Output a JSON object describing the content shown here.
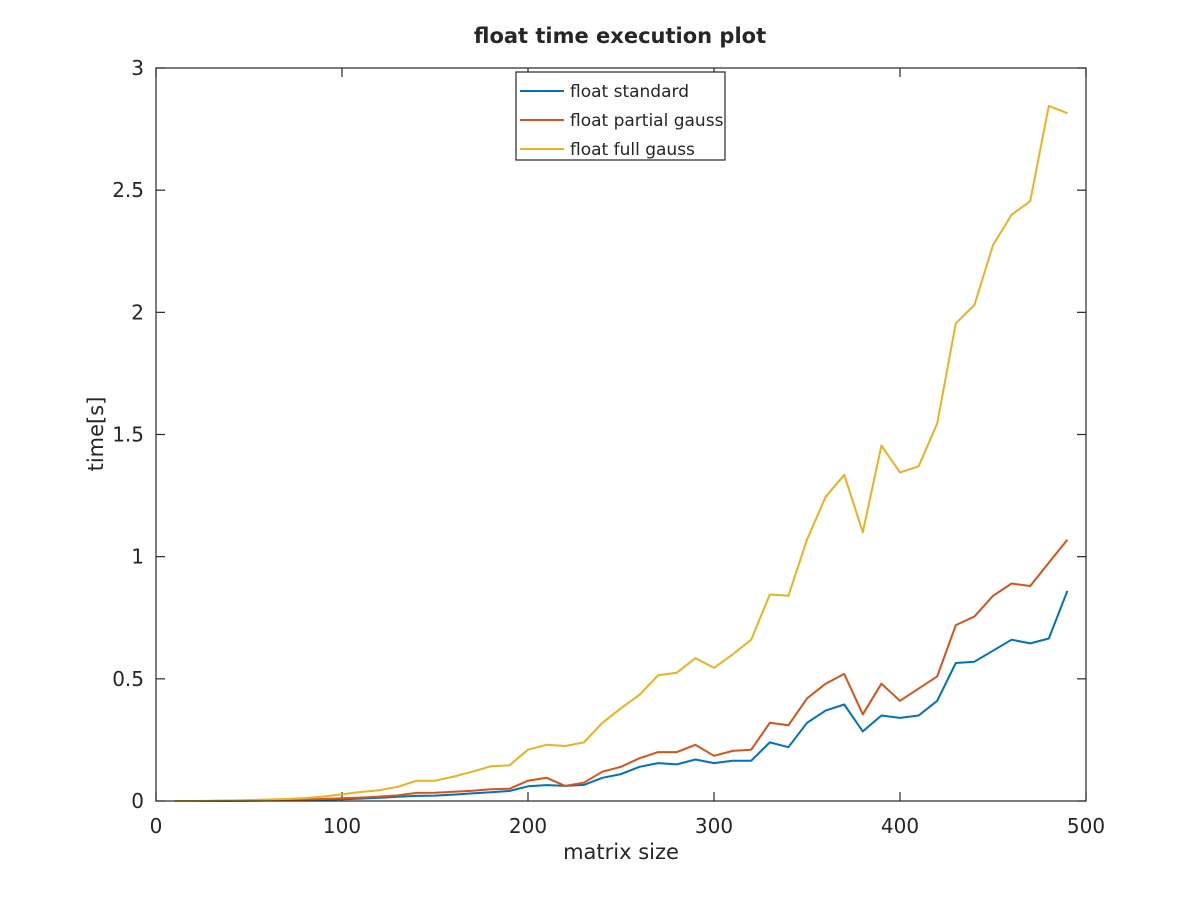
{
  "chart_data": {
    "type": "line",
    "title": "float time execution plot",
    "xlabel": "matrix size",
    "ylabel": "time[s]",
    "xlim": [
      0,
      500
    ],
    "ylim": [
      0,
      3
    ],
    "xticks": [
      0,
      100,
      200,
      300,
      400,
      500
    ],
    "xtick_labels": [
      "0",
      "100",
      "200",
      "300",
      "400",
      "500"
    ],
    "yticks": [
      0,
      0.5,
      1,
      1.5,
      2,
      2.5,
      3
    ],
    "ytick_labels": [
      "0",
      "0.5",
      "1",
      "1.5",
      "2",
      "2.5",
      "3"
    ],
    "grid": false,
    "legend_position": "top-center",
    "x": [
      10,
      20,
      30,
      40,
      50,
      60,
      70,
      80,
      90,
      100,
      110,
      120,
      130,
      140,
      150,
      160,
      170,
      180,
      190,
      200,
      210,
      220,
      230,
      240,
      250,
      260,
      270,
      280,
      290,
      300,
      310,
      320,
      330,
      340,
      350,
      360,
      370,
      380,
      390,
      400,
      410,
      420,
      430,
      440,
      450,
      460,
      470,
      480,
      490
    ],
    "series": [
      {
        "name": "float standard",
        "color": "#0072BD",
        "values": [
          0.0,
          0.0,
          0.0,
          0.001,
          0.001,
          0.002,
          0.003,
          0.004,
          0.005,
          0.007,
          0.01,
          0.013,
          0.017,
          0.021,
          0.022,
          0.026,
          0.031,
          0.036,
          0.041,
          0.06,
          0.065,
          0.062,
          0.066,
          0.095,
          0.11,
          0.14,
          0.155,
          0.15,
          0.17,
          0.155,
          0.165,
          0.165,
          0.24,
          0.22,
          0.32,
          0.37,
          0.395,
          0.285,
          0.35,
          0.34,
          0.35,
          0.41,
          0.565,
          0.57,
          0.615,
          0.66,
          0.645,
          0.665,
          0.86
        ]
      },
      {
        "name": "float partial gauss",
        "color": "#D95319",
        "values": [
          0.0,
          0.0,
          0.0,
          0.001,
          0.002,
          0.003,
          0.004,
          0.006,
          0.008,
          0.011,
          0.014,
          0.018,
          0.023,
          0.033,
          0.034,
          0.038,
          0.042,
          0.048,
          0.05,
          0.083,
          0.095,
          0.062,
          0.075,
          0.12,
          0.14,
          0.175,
          0.2,
          0.2,
          0.23,
          0.185,
          0.205,
          0.21,
          0.32,
          0.31,
          0.42,
          0.48,
          0.52,
          0.355,
          0.48,
          0.41,
          0.46,
          0.51,
          0.72,
          0.755,
          0.84,
          0.89,
          0.88,
          0.975,
          1.07
        ]
      },
      {
        "name": "float full gauss",
        "color": "#EDB120",
        "values": [
          0.0,
          0.0,
          0.001,
          0.002,
          0.004,
          0.006,
          0.008,
          0.012,
          0.018,
          0.028,
          0.037,
          0.044,
          0.058,
          0.083,
          0.083,
          0.1,
          0.12,
          0.142,
          0.146,
          0.21,
          0.23,
          0.225,
          0.24,
          0.32,
          0.38,
          0.435,
          0.515,
          0.525,
          0.585,
          0.545,
          0.6,
          0.66,
          0.845,
          0.84,
          1.07,
          1.245,
          1.335,
          1.1,
          1.455,
          1.345,
          1.37,
          1.545,
          1.955,
          2.03,
          2.275,
          2.4,
          2.455,
          2.845,
          2.815
        ]
      }
    ]
  }
}
